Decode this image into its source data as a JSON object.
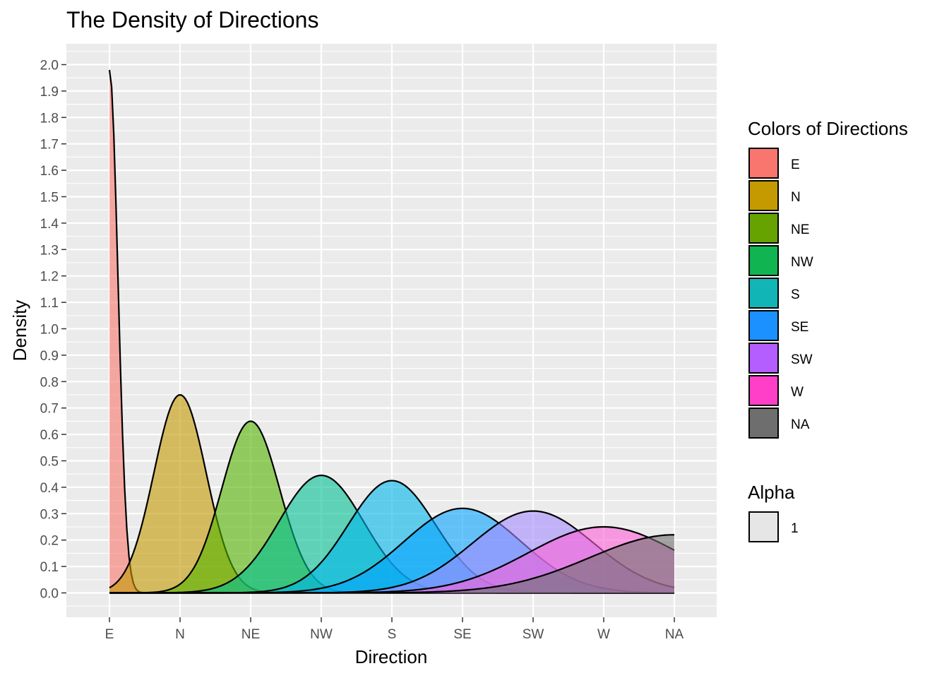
{
  "chart_data": {
    "type": "area",
    "subtype": "density",
    "title": "The Density of Directions",
    "xlabel": "Direction",
    "ylabel": "Density",
    "x_categories": [
      "E",
      "N",
      "NE",
      "NW",
      "S",
      "SE",
      "SW",
      "W",
      "NA"
    ],
    "ylim": [
      -0.09,
      2.08
    ],
    "y_ticks": [
      "0.0",
      "0.1",
      "0.2",
      "0.3",
      "0.4",
      "0.5",
      "0.6",
      "0.7",
      "0.8",
      "0.9",
      "1.0",
      "1.1",
      "1.2",
      "1.3",
      "1.4",
      "1.5",
      "1.6",
      "1.7",
      "1.8",
      "1.9",
      "2.0"
    ],
    "grid": true,
    "legend_position": "right",
    "series": [
      {
        "name": "E",
        "color": "#F8766D",
        "peak_category": "E",
        "peak_density": 1.98,
        "spread": 0.12
      },
      {
        "name": "N",
        "color": "#C49A00",
        "peak_category": "N",
        "peak_density": 0.75,
        "spread": 0.37
      },
      {
        "name": "NE",
        "color": "#53B400",
        "peak_category": "NE",
        "peak_density": 0.65,
        "spread": 0.41
      },
      {
        "name": "NW",
        "color": "#00C094",
        "peak_category": "NW",
        "peak_density": 0.445,
        "spread": 0.6
      },
      {
        "name": "S",
        "color": "#00B6EB",
        "peak_category": "S",
        "peak_density": 0.425,
        "spread": 0.62
      },
      {
        "name": "SE",
        "color": "#06A4FF",
        "peak_category": "SE",
        "peak_density": 0.32,
        "spread": 0.83
      },
      {
        "name": "SW",
        "color": "#A58AFF",
        "peak_category": "SW",
        "peak_density": 0.31,
        "spread": 0.86
      },
      {
        "name": "W",
        "color": "#FB61D7",
        "peak_category": "W",
        "peak_density": 0.25,
        "spread": 1.07
      },
      {
        "name": "NA",
        "color": "#6E6E6E",
        "peak_category": "NA",
        "peak_density": 0.22,
        "spread": 1.2
      }
    ],
    "legend": {
      "title": "Colors of Directions",
      "items": [
        {
          "label": "E",
          "color": "#F8766D"
        },
        {
          "label": "N",
          "color": "#C49A00"
        },
        {
          "label": "NE",
          "color": "#66A300"
        },
        {
          "label": "NW",
          "color": "#10B450"
        },
        {
          "label": "S",
          "color": "#12B5B5"
        },
        {
          "label": "SE",
          "color": "#1A91FF"
        },
        {
          "label": "SW",
          "color": "#B55EFF"
        },
        {
          "label": "W",
          "color": "#FF3FC8"
        },
        {
          "label": "NA",
          "color": "#6E6E6E"
        }
      ]
    },
    "alpha_legend": {
      "title": "Alpha",
      "items": [
        {
          "label": "1",
          "color": "#E6E6E6"
        }
      ]
    }
  }
}
